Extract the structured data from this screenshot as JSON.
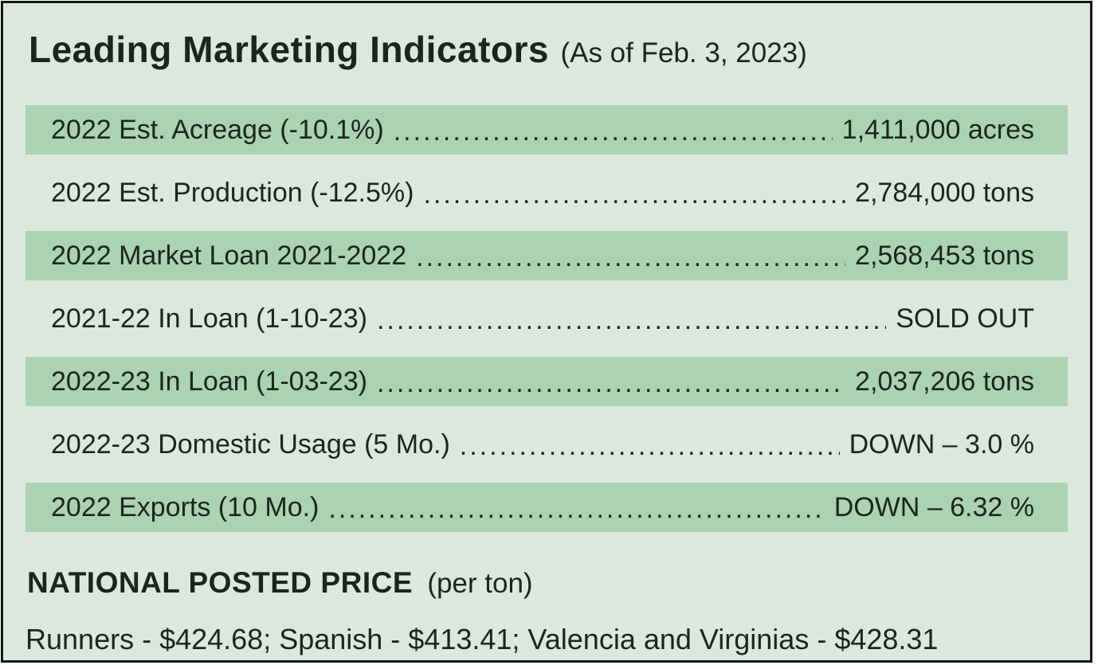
{
  "panel": {
    "title": "Leading Marketing Indicators",
    "title_suffix": "(As of Feb. 3, 2023)",
    "rows": [
      {
        "label": "2022 Est. Acreage (-10.1%)",
        "value": "1,411,000 acres",
        "striped": true
      },
      {
        "label": "2022 Est. Production (-12.5%)",
        "value": "2,784,000 tons",
        "striped": false
      },
      {
        "label": "2022 Market Loan 2021-2022",
        "value": "2,568,453 tons",
        "striped": true
      },
      {
        "label": "2021-22 In Loan (1-10-23)",
        "value": "SOLD OUT",
        "striped": false
      },
      {
        "label": "2022-23 In Loan (1-03-23)",
        "value": "2,037,206 tons",
        "striped": true
      },
      {
        "label": "2022-23 Domestic Usage (5 Mo.)",
        "value": "DOWN – 3.0 %",
        "striped": false
      },
      {
        "label": "2022 Exports (10 Mo.)",
        "value": "DOWN – 6.32 %",
        "striped": true
      }
    ],
    "footer": {
      "heading": "NATIONAL POSTED PRICE",
      "heading_suffix": "(per ton)",
      "prices_line": "Runners - $424.68; Spanish - $413.41; Valencia and Virginias - $428.31"
    },
    "leader_dots": "........................................................................................................................................................",
    "colors": {
      "background": "#dce8dd",
      "stripe": "#abd3b2",
      "text": "#1d241f",
      "border": "#121512"
    }
  }
}
